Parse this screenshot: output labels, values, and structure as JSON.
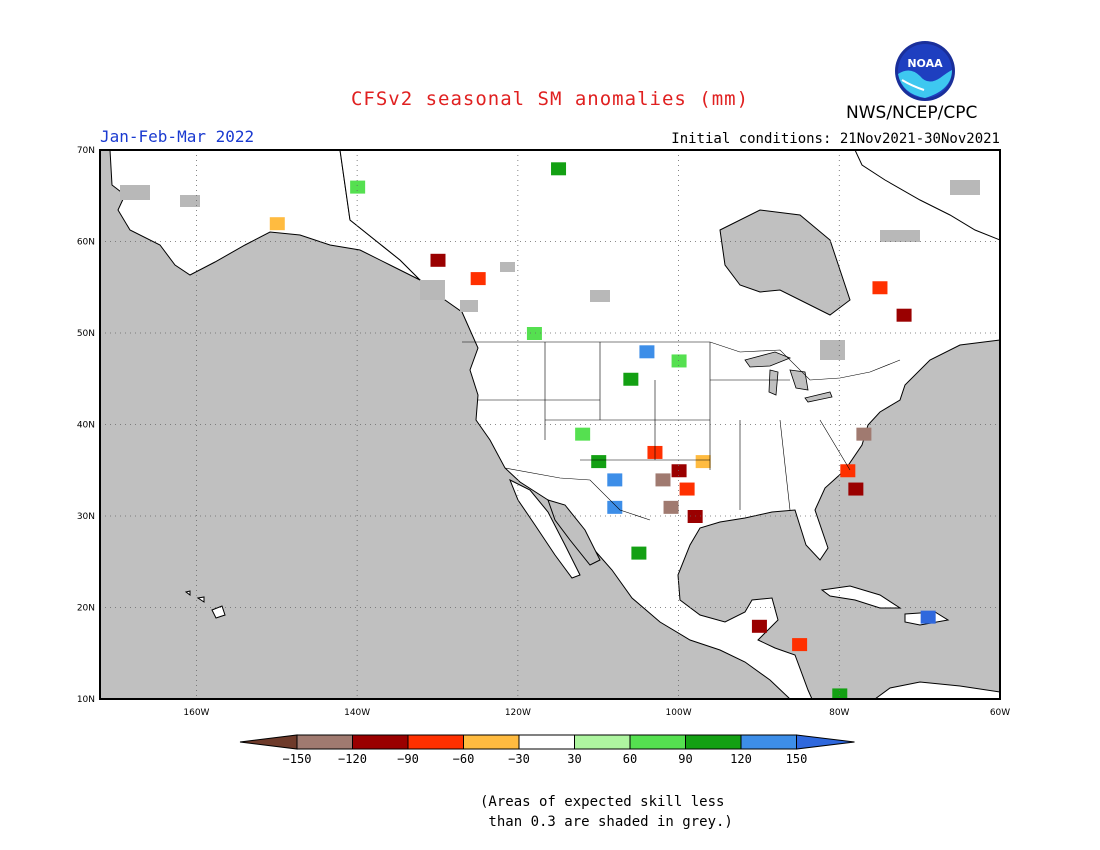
{
  "header": {
    "title": "CFSv2 seasonal SM anomalies (mm)",
    "season": "Jan-Feb-Mar 2022",
    "initial_conditions": "Initial conditions: 21Nov2021-30Nov2021",
    "org": "NWS/NCEP/CPC",
    "logo_text": "NOAA"
  },
  "map": {
    "lon_range": [
      -172,
      -60
    ],
    "lat_range": [
      10,
      70
    ],
    "lon_ticks": [
      "160W",
      "140W",
      "120W",
      "100W",
      "80W",
      "60W"
    ],
    "lat_ticks": [
      "70N",
      "60N",
      "50N",
      "40N",
      "30N",
      "20N",
      "10N"
    ],
    "grid": "dotted"
  },
  "legend": {
    "labels": [
      "-150",
      "-120",
      "-90",
      "-60",
      "-30",
      "30",
      "60",
      "90",
      "120",
      "150"
    ],
    "colors": [
      "#6e3a2a",
      "#a07a70",
      "#9a0000",
      "#ff3000",
      "#ffbb40",
      "#ffffff",
      "#aef5a0",
      "#55e050",
      "#13a013",
      "#3d8ee8",
      "#2f68dd"
    ]
  },
  "note": "(Areas of expected skill less\n than 0.3 are shaded in grey.)",
  "anomaly_cells": [
    {
      "lon": -103,
      "lat": 37,
      "cat": "neg60"
    },
    {
      "lon": -100,
      "lat": 35,
      "cat": "neg90"
    },
    {
      "lon": -99,
      "lat": 33,
      "cat": "neg60"
    },
    {
      "lon": -102,
      "lat": 34,
      "cat": "neg120"
    },
    {
      "lon": -101,
      "lat": 31,
      "cat": "neg120"
    },
    {
      "lon": -98,
      "lat": 30,
      "cat": "neg90"
    },
    {
      "lon": -97,
      "lat": 36,
      "cat": "neg30"
    },
    {
      "lon": -79,
      "lat": 35,
      "cat": "neg60"
    },
    {
      "lon": -78,
      "lat": 33,
      "cat": "neg90"
    },
    {
      "lon": -77,
      "lat": 39,
      "cat": "neg120"
    },
    {
      "lon": -108,
      "lat": 34,
      "cat": "pos120"
    },
    {
      "lon": -110,
      "lat": 36,
      "cat": "pos90"
    },
    {
      "lon": -112,
      "lat": 39,
      "cat": "pos60"
    },
    {
      "lon": -106,
      "lat": 45,
      "cat": "pos90"
    },
    {
      "lon": -104,
      "lat": 48,
      "cat": "pos120"
    },
    {
      "lon": -100,
      "lat": 47,
      "cat": "pos60"
    },
    {
      "lon": -108,
      "lat": 31,
      "cat": "pos120"
    },
    {
      "lon": -105,
      "lat": 26,
      "cat": "pos90"
    },
    {
      "lon": -118,
      "lat": 50,
      "cat": "pos60"
    },
    {
      "lon": -75,
      "lat": 55,
      "cat": "neg60"
    },
    {
      "lon": -72,
      "lat": 52,
      "cat": "neg90"
    },
    {
      "lon": -130,
      "lat": 58,
      "cat": "neg90"
    },
    {
      "lon": -125,
      "lat": 56,
      "cat": "neg60"
    },
    {
      "lon": -150,
      "lat": 62,
      "cat": "neg30"
    },
    {
      "lon": -140,
      "lat": 66,
      "cat": "pos60"
    },
    {
      "lon": -115,
      "lat": 68,
      "cat": "pos90"
    },
    {
      "lon": -85,
      "lat": 16,
      "cat": "neg60"
    },
    {
      "lon": -90,
      "lat": 18,
      "cat": "neg90"
    },
    {
      "lon": -80,
      "lat": 10.5,
      "cat": "pos90"
    },
    {
      "lon": -69,
      "lat": 19,
      "cat": "pos150"
    }
  ]
}
